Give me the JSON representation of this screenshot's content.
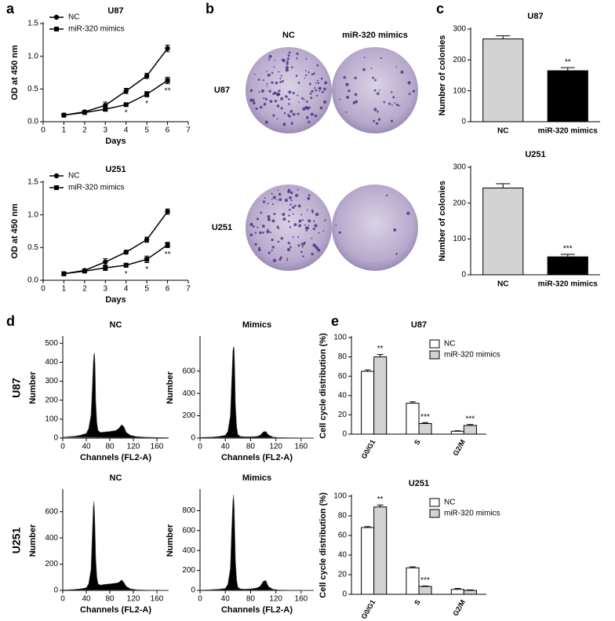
{
  "panel_labels": [
    "a",
    "b",
    "c",
    "d",
    "e"
  ],
  "panel_b": {
    "column_labels": [
      "NC",
      "miR-320 mimics"
    ],
    "row_labels": [
      "U87",
      "U251"
    ]
  },
  "chart_data": [
    {
      "type": "line",
      "title": "U87",
      "xlabel": "Days",
      "ylabel": "OD at 450 nm",
      "x": [
        1,
        2,
        3,
        4,
        5,
        6
      ],
      "xlim": [
        0,
        7
      ],
      "xticks": [
        0,
        1,
        2,
        3,
        4,
        5,
        6,
        7
      ],
      "ylim": [
        0,
        1.5
      ],
      "yticks": [
        {
          "value": 0,
          "label": "0.0"
        },
        0.5,
        {
          "value": 1,
          "label": "1.0"
        },
        1.5
      ],
      "series": [
        {
          "name": "NC",
          "color": "#000000",
          "marker": "circle",
          "values": [
            0.1,
            0.15,
            0.25,
            0.47,
            0.7,
            1.12
          ],
          "errors": [
            0.01,
            0.02,
            0.05,
            0.04,
            0.04,
            0.05
          ]
        },
        {
          "name": "miR-320 mimics",
          "color": "#000000",
          "marker": "square",
          "values": [
            0.1,
            0.14,
            0.19,
            0.26,
            0.42,
            0.63
          ],
          "errors": [
            0.01,
            0.02,
            0.03,
            0.02,
            0.04,
            0.05
          ],
          "sig": [
            null,
            null,
            null,
            "*",
            "*",
            "**"
          ]
        }
      ]
    },
    {
      "type": "line",
      "title": "U251",
      "xlabel": "Days",
      "ylabel": "OD at 450 nm",
      "x": [
        1,
        2,
        3,
        4,
        5,
        6
      ],
      "xlim": [
        0,
        7
      ],
      "xticks": [
        0,
        1,
        2,
        3,
        4,
        5,
        6,
        7
      ],
      "ylim": [
        0,
        1.5
      ],
      "yticks": [
        {
          "value": 0,
          "label": "0.0"
        },
        0.5,
        {
          "value": 1,
          "label": "1.0"
        },
        1.5
      ],
      "series": [
        {
          "name": "NC",
          "color": "#000000",
          "marker": "circle",
          "values": [
            0.1,
            0.15,
            0.28,
            0.43,
            0.62,
            1.05
          ],
          "errors": [
            0.03,
            0.02,
            0.05,
            0.03,
            0.04,
            0.04
          ]
        },
        {
          "name": "miR-320 mimics",
          "color": "#000000",
          "marker": "square",
          "values": [
            0.1,
            0.14,
            0.19,
            0.23,
            0.32,
            0.54
          ],
          "errors": [
            0.02,
            0.02,
            0.04,
            0.03,
            0.05,
            0.04
          ],
          "sig": [
            null,
            null,
            null,
            "*",
            "*",
            "**"
          ]
        }
      ]
    },
    {
      "type": "bar",
      "title": "U87",
      "ylabel": "Number of colonies",
      "categories": [
        "NC",
        "miR-320 mimics"
      ],
      "values": [
        268,
        165
      ],
      "errors": [
        10,
        10
      ],
      "sig": [
        null,
        "**"
      ],
      "colors": [
        "#d3d3d3",
        "#000000"
      ],
      "ylim": [
        0,
        300
      ],
      "yticks": [
        0,
        100,
        200,
        300
      ]
    },
    {
      "type": "bar",
      "title": "U251",
      "ylabel": "Number of colonies",
      "categories": [
        "NC",
        "miR-320 mimics"
      ],
      "values": [
        242,
        50
      ],
      "errors": [
        12,
        7
      ],
      "sig": [
        null,
        "***"
      ],
      "colors": [
        "#d3d3d3",
        "#000000"
      ],
      "ylim": [
        0,
        300
      ],
      "yticks": [
        0,
        100,
        200,
        300
      ]
    },
    {
      "type": "area",
      "title": "NC",
      "row_label": "U87",
      "xlabel": "Channels (FL2-A)",
      "ylabel": "Number",
      "color": "#000000",
      "x": [
        0,
        10,
        20,
        30,
        40,
        44,
        48,
        50,
        52,
        53,
        54,
        55,
        56,
        58,
        60,
        64,
        70,
        80,
        90,
        95,
        100,
        104,
        108,
        115,
        125,
        140,
        160,
        180
      ],
      "values": [
        5,
        8,
        10,
        15,
        25,
        50,
        120,
        250,
        400,
        440,
        450,
        380,
        200,
        80,
        40,
        30,
        32,
        35,
        40,
        50,
        70,
        60,
        30,
        15,
        8,
        5,
        3,
        2
      ],
      "xlim": [
        0,
        180
      ],
      "xticks": [
        0,
        40,
        80,
        120,
        160
      ],
      "ylim": [
        0,
        530
      ],
      "yticks": [
        0,
        100,
        200,
        300,
        400,
        500
      ]
    },
    {
      "type": "area",
      "title": "Mimics",
      "xlabel": "Channels (FL2-A)",
      "ylabel": "Number",
      "color": "#000000",
      "x": [
        0,
        10,
        20,
        30,
        40,
        44,
        48,
        50,
        52,
        53,
        54,
        55,
        56,
        58,
        60,
        64,
        70,
        80,
        90,
        95,
        100,
        104,
        108,
        115,
        125,
        140,
        160,
        180
      ],
      "values": [
        5,
        8,
        10,
        15,
        25,
        60,
        200,
        500,
        780,
        820,
        800,
        600,
        300,
        100,
        30,
        15,
        12,
        12,
        15,
        25,
        55,
        60,
        30,
        10,
        5,
        3,
        2,
        1
      ],
      "xlim": [
        0,
        180
      ],
      "xticks": [
        0,
        40,
        80,
        120,
        160
      ],
      "ylim": [
        0,
        900
      ],
      "yticks": [
        0,
        200,
        400,
        600
      ]
    },
    {
      "type": "area",
      "title": "NC",
      "row_label": "U251",
      "xlabel": "Channels (FL2-A)",
      "ylabel": "Number",
      "color": "#000000",
      "x": [
        0,
        10,
        20,
        30,
        40,
        44,
        48,
        50,
        52,
        53,
        54,
        55,
        56,
        58,
        60,
        64,
        70,
        80,
        90,
        95,
        100,
        104,
        108,
        115,
        125,
        140,
        160,
        180
      ],
      "values": [
        3,
        5,
        8,
        12,
        20,
        50,
        160,
        400,
        640,
        680,
        600,
        450,
        250,
        100,
        50,
        40,
        45,
        50,
        55,
        60,
        80,
        60,
        30,
        12,
        6,
        3,
        2,
        1
      ],
      "xlim": [
        0,
        180
      ],
      "xticks": [
        0,
        40,
        80,
        120,
        160
      ],
      "ylim": [
        0,
        760
      ],
      "yticks": [
        0,
        200,
        400,
        600
      ]
    },
    {
      "type": "area",
      "title": "Mimics",
      "xlabel": "Channels (FL2-A)",
      "ylabel": "Number",
      "color": "#000000",
      "x": [
        0,
        10,
        20,
        30,
        40,
        44,
        48,
        50,
        52,
        53,
        54,
        55,
        56,
        58,
        60,
        64,
        70,
        80,
        90,
        95,
        100,
        104,
        108,
        115,
        125,
        140,
        160,
        180
      ],
      "values": [
        3,
        5,
        8,
        12,
        20,
        60,
        220,
        600,
        900,
        960,
        850,
        600,
        300,
        100,
        30,
        15,
        12,
        15,
        25,
        40,
        90,
        100,
        40,
        12,
        5,
        3,
        2,
        1
      ],
      "xlim": [
        0,
        180
      ],
      "xticks": [
        0,
        40,
        80,
        120,
        160
      ],
      "ylim": [
        0,
        1000
      ],
      "yticks": [
        0,
        200,
        400,
        600,
        800
      ]
    },
    {
      "type": "grouped_bar",
      "title": "U87",
      "ylabel": "Cell cycle distribution (%)",
      "categories": [
        "G0/G1",
        "S",
        "G2/M"
      ],
      "ylim": [
        0,
        100
      ],
      "yticks": [
        0,
        20,
        40,
        60,
        80,
        100
      ],
      "series": [
        {
          "name": "NC",
          "color": "#ffffff",
          "values": [
            65,
            32,
            3
          ],
          "errors": [
            1.5,
            1.5,
            0.5
          ]
        },
        {
          "name": "miR-320 mimics",
          "color": "#d3d3d3",
          "values": [
            80,
            11,
            9
          ],
          "errors": [
            2.5,
            1,
            1
          ],
          "sig": [
            "**",
            "***",
            "***"
          ]
        }
      ]
    },
    {
      "type": "grouped_bar",
      "title": "U251",
      "ylabel": "Cell cycle distribution (%)",
      "categories": [
        "G0/G1",
        "S",
        "G2/M"
      ],
      "ylim": [
        0,
        100
      ],
      "yticks": [
        0,
        20,
        40,
        60,
        80,
        100
      ],
      "series": [
        {
          "name": "NC",
          "color": "#ffffff",
          "values": [
            68,
            27,
            5
          ],
          "errors": [
            1,
            1,
            1
          ]
        },
        {
          "name": "miR-320 mimics",
          "color": "#d3d3d3",
          "values": [
            89,
            8,
            4
          ],
          "errors": [
            2,
            0.5,
            0.5
          ],
          "sig": [
            "**",
            "***",
            null
          ]
        }
      ]
    }
  ]
}
